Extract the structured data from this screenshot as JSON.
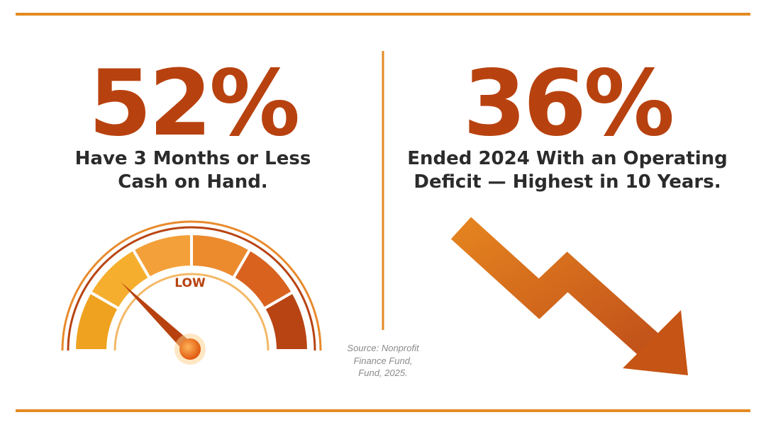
{
  "left": {
    "stat": "52%",
    "caption": [
      "Have 3 Months or Less",
      "Cash on Hand."
    ],
    "gauge_label": "LOW"
  },
  "right": {
    "stat": "36%",
    "caption": [
      "Ended 2024 With an Operating",
      "Deficit — Highest in 10 Years."
    ]
  },
  "source": [
    "Source: Nonprofit",
    "Finance Fund,",
    "Fund, 2025."
  ]
}
